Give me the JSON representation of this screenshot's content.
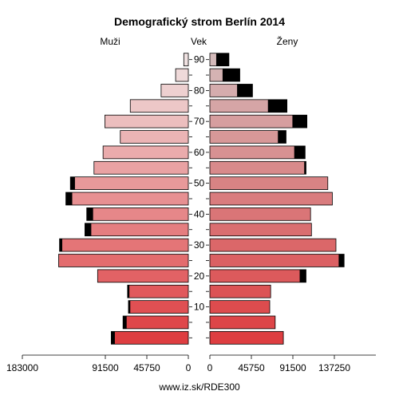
{
  "chart_data": {
    "type": "bar",
    "title": "Demografický strom Berlín 2014",
    "left_label": "Muži",
    "center_label": "Vek",
    "right_label": "Ženy",
    "footer": "www.iz.sk/RDE300",
    "age_groups": [
      "0-4",
      "5-9",
      "10-14",
      "15-19",
      "20-24",
      "25-29",
      "30-34",
      "35-39",
      "40-44",
      "45-49",
      "50-54",
      "55-59",
      "60-64",
      "65-69",
      "70-74",
      "75-79",
      "80-84",
      "85-89",
      "90+"
    ],
    "age_tick_labels": [
      "10",
      "20",
      "30",
      "40",
      "50",
      "60",
      "70",
      "80",
      "90"
    ],
    "male_axis_ticks": [
      "183000",
      "91500",
      "45750",
      "0"
    ],
    "female_axis_ticks": [
      "0",
      "45750",
      "91500",
      "137250"
    ],
    "axis_max": 183000,
    "series": [
      {
        "name": "Muži",
        "total": [
          85000,
          72000,
          66000,
          67000,
          100000,
          143000,
          142000,
          114000,
          112000,
          135000,
          130000,
          104000,
          94000,
          75000,
          92000,
          64000,
          30000,
          14000,
          5000
        ],
        "black": [
          4000,
          4000,
          2000,
          2000,
          0,
          0,
          3000,
          7000,
          7000,
          7000,
          5000,
          0,
          0,
          0,
          0,
          0,
          0,
          0,
          0
        ]
      },
      {
        "name": "Ženy",
        "total": [
          81000,
          72000,
          66000,
          67000,
          106000,
          148000,
          139000,
          112000,
          111000,
          135000,
          130000,
          106000,
          105000,
          84000,
          107000,
          85000,
          47000,
          33000,
          21000
        ],
        "black": [
          0,
          0,
          0,
          0,
          7000,
          6000,
          0,
          0,
          0,
          0,
          0,
          2000,
          12000,
          9000,
          16000,
          21000,
          17000,
          19000,
          14000
        ]
      }
    ]
  }
}
